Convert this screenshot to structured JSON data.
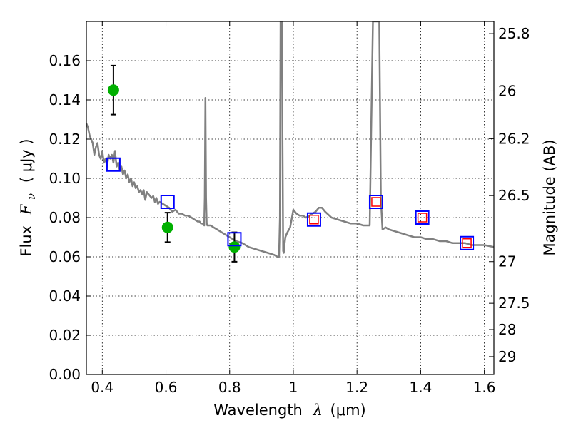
{
  "chart_data": {
    "type": "scatter",
    "title": "",
    "xlabel_parts": {
      "pre": "Wavelength",
      "sym": "λ",
      "post": "(μm)"
    },
    "ylabel_parts": {
      "pre": "Flux",
      "sym": "F",
      "sub": "ν",
      "post": "( μJy )"
    },
    "y2label": "Magnitude (AB)",
    "xlim": [
      0.35,
      1.63
    ],
    "ylim": [
      0.0,
      0.18
    ],
    "grid": true,
    "x_ticks": [
      {
        "v": 0.4,
        "label": "0.4"
      },
      {
        "v": 0.6,
        "label": "0.6"
      },
      {
        "v": 0.8,
        "label": "0.8"
      },
      {
        "v": 1.0,
        "label": "1"
      },
      {
        "v": 1.2,
        "label": "1.2"
      },
      {
        "v": 1.4,
        "label": "1.4"
      },
      {
        "v": 1.6,
        "label": "1.6"
      }
    ],
    "y_ticks": [
      {
        "v": 0.0,
        "label": "0.00"
      },
      {
        "v": 0.02,
        "label": "0.02"
      },
      {
        "v": 0.04,
        "label": "0.04"
      },
      {
        "v": 0.06,
        "label": "0.06"
      },
      {
        "v": 0.08,
        "label": "0.08"
      },
      {
        "v": 0.1,
        "label": "0.10"
      },
      {
        "v": 0.12,
        "label": "0.12"
      },
      {
        "v": 0.14,
        "label": "0.14"
      },
      {
        "v": 0.16,
        "label": "0.16"
      }
    ],
    "y2_ticks": [
      {
        "mag": 25.8,
        "label": "25.8"
      },
      {
        "mag": 26.0,
        "label": "26"
      },
      {
        "mag": 26.2,
        "label": "26.2"
      },
      {
        "mag": 26.5,
        "label": "26.5"
      },
      {
        "mag": 27.0,
        "label": "27"
      },
      {
        "mag": 27.5,
        "label": "27.5"
      },
      {
        "mag": 28.0,
        "label": "28"
      },
      {
        "mag": 29.0,
        "label": "29"
      }
    ],
    "series": [
      {
        "kind": "line",
        "color": "#808080",
        "x": [
          0.35,
          0.355,
          0.36,
          0.365,
          0.37,
          0.375,
          0.38,
          0.385,
          0.39,
          0.395,
          0.4,
          0.405,
          0.41,
          0.415,
          0.42,
          0.425,
          0.43,
          0.435,
          0.44,
          0.445,
          0.45,
          0.455,
          0.46,
          0.465,
          0.47,
          0.475,
          0.48,
          0.485,
          0.49,
          0.495,
          0.5,
          0.505,
          0.51,
          0.515,
          0.52,
          0.525,
          0.53,
          0.535,
          0.54,
          0.545,
          0.55,
          0.555,
          0.56,
          0.565,
          0.57,
          0.575,
          0.58,
          0.59,
          0.6,
          0.61,
          0.62,
          0.63,
          0.64,
          0.65,
          0.66,
          0.67,
          0.68,
          0.69,
          0.7,
          0.705,
          0.71,
          0.715,
          0.72,
          0.722,
          0.724,
          0.726,
          0.728,
          0.73,
          0.74,
          0.75,
          0.76,
          0.77,
          0.78,
          0.79,
          0.8,
          0.82,
          0.84,
          0.86,
          0.88,
          0.9,
          0.92,
          0.94,
          0.95,
          0.955,
          0.958,
          0.96,
          0.962,
          0.964,
          0.966,
          0.968,
          0.97,
          0.972,
          0.975,
          0.98,
          0.99,
          1.0,
          1.005,
          1.01,
          1.02,
          1.03,
          1.04,
          1.05,
          1.06,
          1.07,
          1.08,
          1.09,
          1.1,
          1.12,
          1.14,
          1.16,
          1.18,
          1.2,
          1.22,
          1.24,
          1.245,
          1.25,
          1.255,
          1.26,
          1.265,
          1.27,
          1.275,
          1.28,
          1.29,
          1.3,
          1.32,
          1.34,
          1.36,
          1.38,
          1.4,
          1.42,
          1.44,
          1.46,
          1.48,
          1.5,
          1.52,
          1.54,
          1.56,
          1.58,
          1.6,
          1.63
        ],
        "y": [
          0.128,
          0.126,
          0.122,
          0.12,
          0.118,
          0.112,
          0.116,
          0.118,
          0.112,
          0.11,
          0.114,
          0.108,
          0.11,
          0.106,
          0.112,
          0.11,
          0.112,
          0.108,
          0.114,
          0.106,
          0.108,
          0.104,
          0.106,
          0.102,
          0.104,
          0.1,
          0.102,
          0.098,
          0.1,
          0.096,
          0.098,
          0.095,
          0.096,
          0.093,
          0.094,
          0.092,
          0.094,
          0.089,
          0.093,
          0.092,
          0.091,
          0.09,
          0.091,
          0.088,
          0.09,
          0.087,
          0.088,
          0.087,
          0.086,
          0.085,
          0.083,
          0.084,
          0.082,
          0.082,
          0.081,
          0.081,
          0.08,
          0.079,
          0.078,
          0.078,
          0.077,
          0.077,
          0.076,
          0.09,
          0.141,
          0.09,
          0.077,
          0.076,
          0.076,
          0.075,
          0.074,
          0.073,
          0.072,
          0.071,
          0.07,
          0.068,
          0.067,
          0.065,
          0.064,
          0.063,
          0.062,
          0.061,
          0.06,
          0.06,
          0.08,
          0.18,
          0.165,
          0.18,
          0.12,
          0.063,
          0.062,
          0.066,
          0.07,
          0.072,
          0.075,
          0.084,
          0.083,
          0.082,
          0.081,
          0.081,
          0.08,
          0.081,
          0.082,
          0.083,
          0.085,
          0.085,
          0.083,
          0.08,
          0.079,
          0.078,
          0.077,
          0.077,
          0.076,
          0.076,
          0.13,
          0.18,
          0.18,
          0.18,
          0.18,
          0.18,
          0.09,
          0.074,
          0.075,
          0.074,
          0.073,
          0.072,
          0.071,
          0.07,
          0.07,
          0.069,
          0.069,
          0.068,
          0.068,
          0.067,
          0.067,
          0.067,
          0.066,
          0.066,
          0.066,
          0.065
        ]
      },
      {
        "kind": "points_with_error",
        "marker": "circle",
        "color": "#00b000",
        "x": [
          0.435,
          0.605,
          0.815
        ],
        "y": [
          0.145,
          0.075,
          0.065
        ],
        "yerr": [
          0.0125,
          0.0075,
          0.0075
        ]
      },
      {
        "kind": "points",
        "marker": "open-square",
        "color": "#0000ff",
        "x": [
          0.435,
          0.605,
          0.815,
          1.065,
          1.26,
          1.405,
          1.545
        ],
        "y": [
          0.107,
          0.088,
          0.069,
          0.079,
          0.088,
          0.08,
          0.067
        ]
      },
      {
        "kind": "points",
        "marker": "open-square-small",
        "color": "#ff0000",
        "x": [
          1.065,
          1.26,
          1.405,
          1.545
        ],
        "y": [
          0.079,
          0.088,
          0.08,
          0.067
        ]
      }
    ]
  }
}
